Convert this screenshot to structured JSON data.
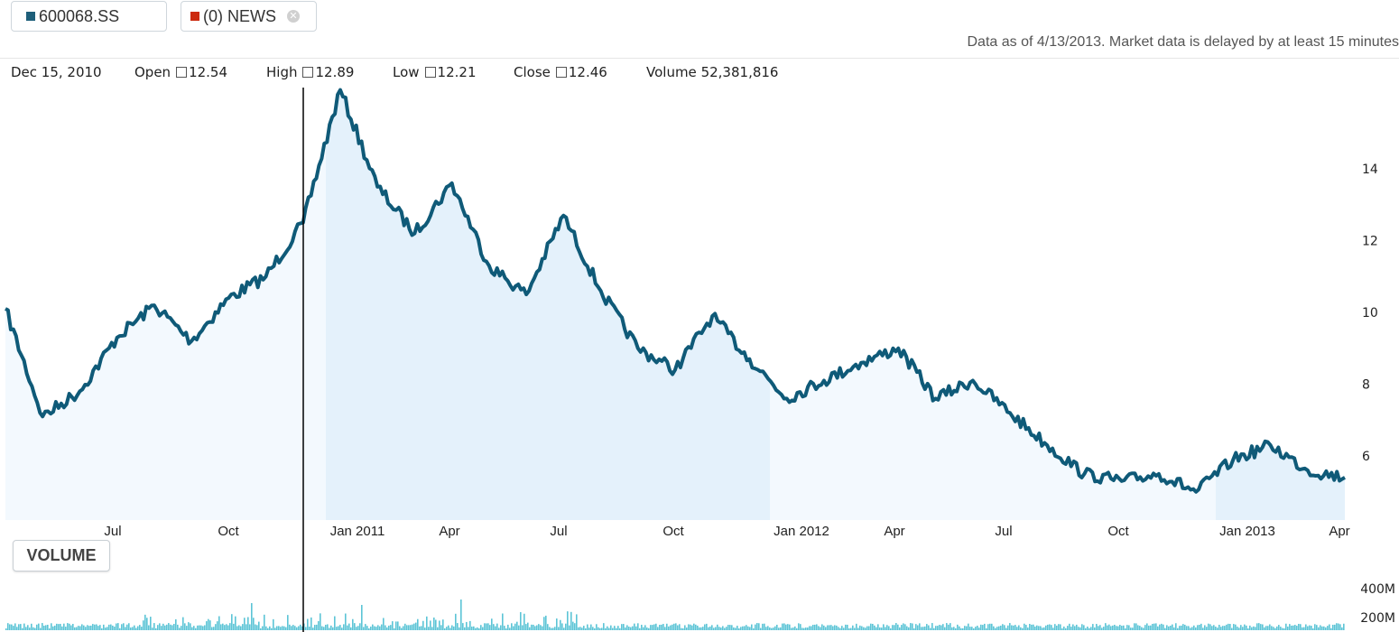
{
  "tabs": {
    "symbol": {
      "label": "600068.SS",
      "color": "#1e5f7a"
    },
    "news": {
      "label": "(0) NEWS",
      "color": "#cc2a0f"
    },
    "close_icon": "close-icon"
  },
  "data_as_of": "Data as of 4/13/2013. Market data is delayed by at least 15 minutes",
  "ohlc": {
    "date": "Dec 15, 2010",
    "open_label": "Open",
    "open": "12.54",
    "high_label": "High",
    "high": "12.89",
    "low_label": "Low",
    "low": "12.21",
    "close_label": "Close",
    "close": "12.46",
    "volume_label": "Volume",
    "volume": "52,381,816"
  },
  "volume_button": "VOLUME",
  "colors": {
    "line": "#0f5a78",
    "fill": "#e4f1fb",
    "fill_light": "#f3f9fe",
    "volume": "#5cc4d6",
    "cursor": "#000000"
  },
  "chart_data": {
    "type": "area",
    "yticks": [
      6,
      8,
      10,
      12,
      14
    ],
    "xtick_labels": [
      "Jul",
      "Oct",
      "Jan 2011",
      "Apr",
      "Jul",
      "Oct",
      "Jan 2012",
      "Apr",
      "Jul",
      "Oct",
      "Jan 2013",
      "Apr"
    ],
    "x": [
      "2010-04",
      "2010-05",
      "2010-06",
      "2010-07",
      "2010-08",
      "2010-09",
      "2010-10",
      "2010-11",
      "2010-12",
      "2011-01",
      "2011-02",
      "2011-03",
      "2011-04",
      "2011-05",
      "2011-06",
      "2011-07",
      "2011-08",
      "2011-09",
      "2011-10",
      "2011-11",
      "2011-12",
      "2012-01",
      "2012-02",
      "2012-03",
      "2012-04",
      "2012-05",
      "2012-06",
      "2012-07",
      "2012-08",
      "2012-09",
      "2012-10",
      "2012-11",
      "2012-12",
      "2013-01",
      "2013-02",
      "2013-03",
      "2013-04"
    ],
    "values": [
      10.1,
      7.1,
      7.8,
      9.3,
      10.2,
      9.2,
      10.4,
      11.0,
      12.5,
      16.2,
      13.5,
      12.2,
      13.6,
      11.3,
      10.5,
      12.7,
      10.6,
      9.0,
      8.4,
      9.9,
      8.7,
      7.6,
      8.1,
      8.6,
      9.0,
      7.6,
      8.1,
      7.2,
      6.3,
      5.5,
      5.3,
      5.5,
      5.0,
      5.9,
      6.3,
      5.6,
      5.4
    ],
    "volume": {
      "labels": [
        "400M",
        "200M"
      ]
    },
    "cursor_date": "Dec 15, 2010"
  }
}
